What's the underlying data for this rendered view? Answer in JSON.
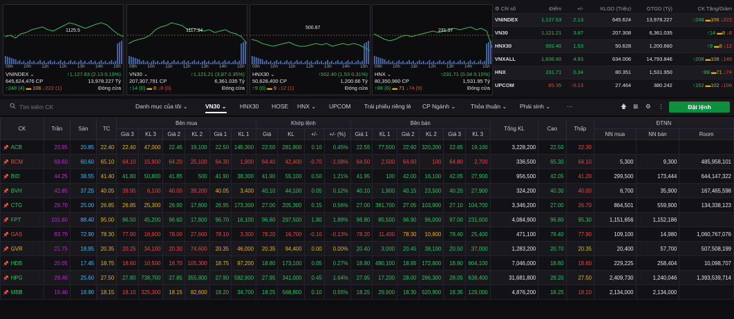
{
  "mini_charts": [
    {
      "name": "VNINDEX",
      "level_label": "1125.5",
      "times": [
        "09h",
        "10h",
        "11h",
        "12h",
        "13h",
        "14h",
        "15h"
      ],
      "line1_left": "VNINDEX ⌄",
      "line1_right": "↑1,127.63 (2.13 0.19%)",
      "line2_left": "645,624,476 CP",
      "line2_right": "13,978.227 Tỷ",
      "line3_up": "↑248 (4)",
      "line3_ref": "106",
      "line3_dn": "↓222 (1)",
      "line3_status": "Đóng cửa"
    },
    {
      "name": "VN30",
      "level_label": "1117.34",
      "times": [
        "09h",
        "10h",
        "11h",
        "12h",
        "13h",
        "14h",
        "15h"
      ],
      "line1_left": "VN30 ⌄",
      "line1_right": "↑1,121.21 (3.87 0.35%)",
      "line2_left": "207,307,791 CP",
      "line2_right": "6,361.035 Tỷ",
      "line3_up": "↑14 (0)",
      "line3_ref": "8",
      "line3_dn": "↓8 (0)",
      "line3_status": "Đóng cửa"
    },
    {
      "name": "HNX30",
      "level_label": "500.87",
      "times": [
        "09h",
        "10h",
        "11h",
        "12h",
        "13h",
        "14h",
        "15h"
      ],
      "line1_left": "HNX30 ⌄",
      "line1_right": "↑502.40 (1.53 0.31%)",
      "line2_left": "50,628,400 CP",
      "line2_right": "1,200.66 Tỷ",
      "line3_up": "↑9 (0)",
      "line3_ref": "9",
      "line3_dn": "↓12 (1)",
      "line3_status": "Đóng cửa"
    },
    {
      "name": "HNX",
      "level_label": "231.37",
      "times": [
        "09h",
        "10h",
        "11h",
        "12h",
        "13h",
        "14h",
        "15h"
      ],
      "line1_left": "HNX ⌄",
      "line1_right": "↑231.71 (0.34 0.15%)",
      "line2_left": "80,350,960 CP",
      "line2_right": "1,531.95 Tỷ",
      "line3_up": "↑88 (6)",
      "line3_ref": "71",
      "line3_dn": "↓74 (9)",
      "line3_status": "Đóng cửa"
    }
  ],
  "index_table": {
    "headers": [
      "Chỉ số",
      "Điểm",
      "+/-",
      "KLGD (Triệu)",
      "GTGD (Tỷ)",
      "CK Tăng/Giảm"
    ],
    "rows": [
      {
        "name": "VNINDEX",
        "point": "1,127.63",
        "chg": "2.13",
        "vol": "645.624",
        "val": "13,978.227",
        "up": "↑248",
        "ref": "106",
        "dn": "↓222",
        "cls": "up"
      },
      {
        "name": "VN30",
        "point": "1,121.21",
        "chg": "3.87",
        "vol": "207.308",
        "val": "6,361.035",
        "up": "↑14",
        "ref": "8",
        "dn": "↓8",
        "cls": "up"
      },
      {
        "name": "HNX30",
        "point": "502.40",
        "chg": "1.53",
        "vol": "50.628",
        "val": "1,200.660",
        "up": "↑9",
        "ref": "9",
        "dn": "↓12",
        "cls": "up"
      },
      {
        "name": "VNXALL",
        "point": "1,836.60",
        "chg": "4.93",
        "vol": "634.006",
        "val": "14,793.846",
        "up": "↑208",
        "ref": "108",
        "dn": "↓149",
        "cls": "up"
      },
      {
        "name": "HNX",
        "point": "231.71",
        "chg": "0.34",
        "vol": "80.351",
        "val": "1,531.950",
        "up": "↑88",
        "ref": "71",
        "dn": "↓74",
        "cls": "up"
      },
      {
        "name": "UPCOM",
        "point": "85.35",
        "chg": "-0.13",
        "vol": "27.464",
        "val": "380.242",
        "up": "↑152",
        "ref": "102",
        "dn": "↓106",
        "cls": "dn"
      }
    ]
  },
  "toolbar": {
    "search_placeholder": "Tìm kiếm CK",
    "items": [
      "Danh mục của tôi ⌄",
      "VN30 ⌄",
      "HNX30",
      "HOSE",
      "HNX ⌄",
      "UPCOM",
      "Trái phiếu riêng lẻ",
      "CP Ngành ⌄",
      "Thỏa thuận ⌄",
      "Phái sinh ⌄",
      "···"
    ],
    "order_button": "Đặt lệnh"
  },
  "board": {
    "groups": {
      "buy": "Bên mua",
      "match": "Khớp lệnh",
      "sell": "Bên bán",
      "foreign": "ĐTNN"
    },
    "cols": {
      "ck": "CK",
      "tran": "Trần",
      "san": "Sàn",
      "tc": "TC",
      "g3": "Giá 3",
      "kl3": "KL 3",
      "g2": "Giá 2",
      "kl2": "KL 2",
      "g1": "Giá 1",
      "kl1": "KL 1",
      "mg": "Giá",
      "mkl": "KL",
      "chg": "+/-",
      "pct": "+/- (%)",
      "total": "Tổng KL",
      "high": "Cao",
      "low": "Thấp",
      "nnbuy": "NN mua",
      "nnsell": "NN bán",
      "room": "Room"
    },
    "rows": [
      {
        "ck": "ACB",
        "c": "up",
        "tran": "23.95",
        "san": "20.85",
        "tc": "22.40",
        "b3": [
          "22.40",
          "47,000",
          "ref"
        ],
        "b2": [
          "22.45",
          "19,100",
          "up"
        ],
        "b1": [
          "22.50",
          "145,300",
          "up"
        ],
        "m": [
          "22.50",
          "281,900",
          "0.10",
          "0.45%",
          "up"
        ],
        "s1": [
          "22.55",
          "77,500",
          "up"
        ],
        "s2": [
          "22.60",
          "320,200",
          "up"
        ],
        "s3": [
          "22.65",
          "19,100",
          "up"
        ],
        "total": "3,228,200",
        "high": [
          "22.50",
          "up"
        ],
        "low": [
          "22.30",
          "dn"
        ],
        "nnbuy": "",
        "nnsell": "",
        "room": ""
      },
      {
        "ck": "BCM",
        "c": "dn",
        "tran": "69.60",
        "san": "60.60",
        "tc": "65.10",
        "b3": [
          "64.10",
          "15,900",
          "dn"
        ],
        "b2": [
          "64.20",
          "25,100",
          "dn"
        ],
        "b1": [
          "64.30",
          "1,900",
          "dn"
        ],
        "m": [
          "64.40",
          "42,400",
          "-0.70",
          "-1.08%",
          "dn"
        ],
        "s1": [
          "64.50",
          "2,500",
          "dn"
        ],
        "s2": [
          "64.60",
          "100",
          "dn"
        ],
        "s3": [
          "64.80",
          "2,700",
          "dn"
        ],
        "total": "336,500",
        "high": [
          "65.30",
          "up"
        ],
        "low": [
          "64.10",
          "dn"
        ],
        "nnbuy": "5,300",
        "nnsell": "9,300",
        "room": "485,958,101"
      },
      {
        "ck": "BID",
        "c": "up",
        "tran": "44.25",
        "san": "38.55",
        "tc": "41.40",
        "b3": [
          "41.80",
          "50,800",
          "up"
        ],
        "b2": [
          "41.85",
          "500",
          "up"
        ],
        "b1": [
          "41.90",
          "38,300",
          "up"
        ],
        "m": [
          "41.90",
          "55,100",
          "0.50",
          "1.21%",
          "up"
        ],
        "s1": [
          "41.95",
          "100",
          "up"
        ],
        "s2": [
          "42.00",
          "16,100",
          "up"
        ],
        "s3": [
          "42.05",
          "27,900",
          "up"
        ],
        "total": "956,500",
        "high": [
          "42.05",
          "up"
        ],
        "low": [
          "41.20",
          "dn"
        ],
        "nnbuy": "299,500",
        "nnsell": "173,444",
        "room": "644,147,322"
      },
      {
        "ck": "BVH",
        "c": "up",
        "tran": "42.85",
        "san": "37.25",
        "tc": "40.05",
        "b3": [
          "39.95",
          "6,100",
          "dn"
        ],
        "b2": [
          "40.00",
          "39,200",
          "dn"
        ],
        "b1": [
          "40.05",
          "3,400",
          "ref"
        ],
        "m": [
          "40.10",
          "44,100",
          "0.05",
          "0.12%",
          "up"
        ],
        "s1": [
          "40.10",
          "1,900",
          "up"
        ],
        "s2": [
          "40.15",
          "23,500",
          "up"
        ],
        "s3": [
          "40.20",
          "27,900",
          "up"
        ],
        "total": "324,200",
        "high": [
          "40.30",
          "up"
        ],
        "low": [
          "40.00",
          "dn"
        ],
        "nnbuy": "6,700",
        "nnsell": "35,900",
        "room": "167,465,598"
      },
      {
        "ck": "CTG",
        "c": "up",
        "tran": "28.70",
        "san": "25.00",
        "tc": "26.85",
        "b3": [
          "26.85",
          "25,300",
          "ref"
        ],
        "b2": [
          "26.90",
          "17,800",
          "up"
        ],
        "b1": [
          "26.95",
          "173,300",
          "up"
        ],
        "m": [
          "27.00",
          "205,300",
          "0.15",
          "0.56%",
          "up"
        ],
        "s1": [
          "27.00",
          "361,700",
          "up"
        ],
        "s2": [
          "27.05",
          "103,900",
          "up"
        ],
        "s3": [
          "27.10",
          "104,700",
          "up"
        ],
        "total": "3,346,200",
        "high": [
          "27.00",
          "up"
        ],
        "low": [
          "26.70",
          "dn"
        ],
        "nnbuy": "864,501",
        "nnsell": "559,900",
        "room": "134,338,123"
      },
      {
        "ck": "FPT",
        "c": "up",
        "tran": "101.60",
        "san": "88.40",
        "tc": "95.00",
        "b3": [
          "96.50",
          "45,200",
          "up"
        ],
        "b2": [
          "96.60",
          "17,800",
          "up"
        ],
        "b1": [
          "96.70",
          "16,100",
          "up"
        ],
        "m": [
          "96.80",
          "297,500",
          "1.80",
          "1.89%",
          "up"
        ],
        "s1": [
          "96.80",
          "85,500",
          "up"
        ],
        "s2": [
          "96.90",
          "96,000",
          "up"
        ],
        "s3": [
          "97.00",
          "231,600",
          "up"
        ],
        "total": "4,084,900",
        "high": [
          "96.80",
          "up"
        ],
        "low": [
          "95.30",
          "up"
        ],
        "nnbuy": "1,151,656",
        "nnsell": "1,152,186",
        "room": ""
      },
      {
        "ck": "GAS",
        "c": "dn",
        "tran": "83.70",
        "san": "72.90",
        "tc": "78.30",
        "b3": [
          "77.90",
          "16,600",
          "dn"
        ],
        "b2": [
          "78.00",
          "27,600",
          "dn"
        ],
        "b1": [
          "78.10",
          "3,300",
          "dn"
        ],
        "m": [
          "78.20",
          "16,700",
          "-0.10",
          "-0.13%",
          "dn"
        ],
        "s1": [
          "78.20",
          "11,400",
          "dn"
        ],
        "s2": [
          "78.30",
          "10,600",
          "ref"
        ],
        "s3": [
          "78.40",
          "25,400",
          "up"
        ],
        "total": "471,100",
        "high": [
          "78.40",
          "up"
        ],
        "low": [
          "77.90",
          "dn"
        ],
        "nnbuy": "109,100",
        "nnsell": "14,980",
        "room": "1,060,767,076"
      },
      {
        "ck": "GVR",
        "c": "ref",
        "tran": "21.75",
        "san": "18.95",
        "tc": "20.35",
        "b3": [
          "20.25",
          "34,100",
          "dn"
        ],
        "b2": [
          "20.30",
          "74,600",
          "dn"
        ],
        "b1": [
          "20.35",
          "46,000",
          "ref"
        ],
        "m": [
          "20.35",
          "94,400",
          "0.00",
          "0.00%",
          "ref"
        ],
        "s1": [
          "20.40",
          "3,000",
          "up"
        ],
        "s2": [
          "20.45",
          "38,100",
          "up"
        ],
        "s3": [
          "20.50",
          "37,000",
          "up"
        ],
        "total": "1,283,200",
        "high": [
          "20.70",
          "up"
        ],
        "low": [
          "20.35",
          "ref"
        ],
        "nnbuy": "20,400",
        "nnsell": "57,700",
        "room": "507,508,199"
      },
      {
        "ck": "HDB",
        "c": "up",
        "tran": "20.05",
        "san": "17.45",
        "tc": "18.75",
        "b3": [
          "18.60",
          "10,500",
          "dn"
        ],
        "b2": [
          "18.70",
          "105,300",
          "dn"
        ],
        "b1": [
          "18.75",
          "97,200",
          "ref"
        ],
        "m": [
          "18.80",
          "173,100",
          "0.05",
          "0.27%",
          "up"
        ],
        "s1": [
          "18.80",
          "490,100",
          "up"
        ],
        "s2": [
          "18.85",
          "172,600",
          "up"
        ],
        "s3": [
          "18.90",
          "604,100",
          "up"
        ],
        "total": "7,046,000",
        "high": [
          "18.80",
          "up"
        ],
        "low": [
          "18.60",
          "dn"
        ],
        "nnbuy": "229,225",
        "nnsell": "258,404",
        "room": "10,098,707"
      },
      {
        "ck": "HPG",
        "c": "up",
        "tran": "29.40",
        "san": "25.60",
        "tc": "27.50",
        "b3": [
          "27.80",
          "738,700",
          "up"
        ],
        "b2": [
          "27.85",
          "355,800",
          "up"
        ],
        "b1": [
          "27.90",
          "592,900",
          "up"
        ],
        "m": [
          "27.95",
          "341,000",
          "0.45",
          "1.64%",
          "up"
        ],
        "s1": [
          "27.95",
          "17,200",
          "up"
        ],
        "s2": [
          "28.00",
          "286,300",
          "up"
        ],
        "s3": [
          "28.05",
          "638,400",
          "up"
        ],
        "total": "31,681,800",
        "high": [
          "28.20",
          "up"
        ],
        "low": [
          "27.50",
          "ref"
        ],
        "nnbuy": "2,409,730",
        "nnsell": "1,240,046",
        "room": "1,393,539,714"
      },
      {
        "ck": "MBB",
        "c": "up",
        "tran": "19.40",
        "san": "16.90",
        "tc": "18.15",
        "b3": [
          "18.10",
          "325,300",
          "dn"
        ],
        "b2": [
          "18.15",
          "82,600",
          "ref"
        ],
        "b1": [
          "18.20",
          "34,700",
          "up"
        ],
        "m": [
          "18.25",
          "568,800",
          "0.10",
          "0.55%",
          "up"
        ],
        "s1": [
          "18.25",
          "29,900",
          "up"
        ],
        "s2": [
          "18.30",
          "520,900",
          "up"
        ],
        "s3": [
          "18.35",
          "129,000",
          "up"
        ],
        "total": "4,876,200",
        "high": [
          "18.25",
          "up"
        ],
        "low": [
          "18.10",
          "dn"
        ],
        "nnbuy": "2,134,000",
        "nnsell": "2,134,000",
        "room": ""
      }
    ]
  }
}
